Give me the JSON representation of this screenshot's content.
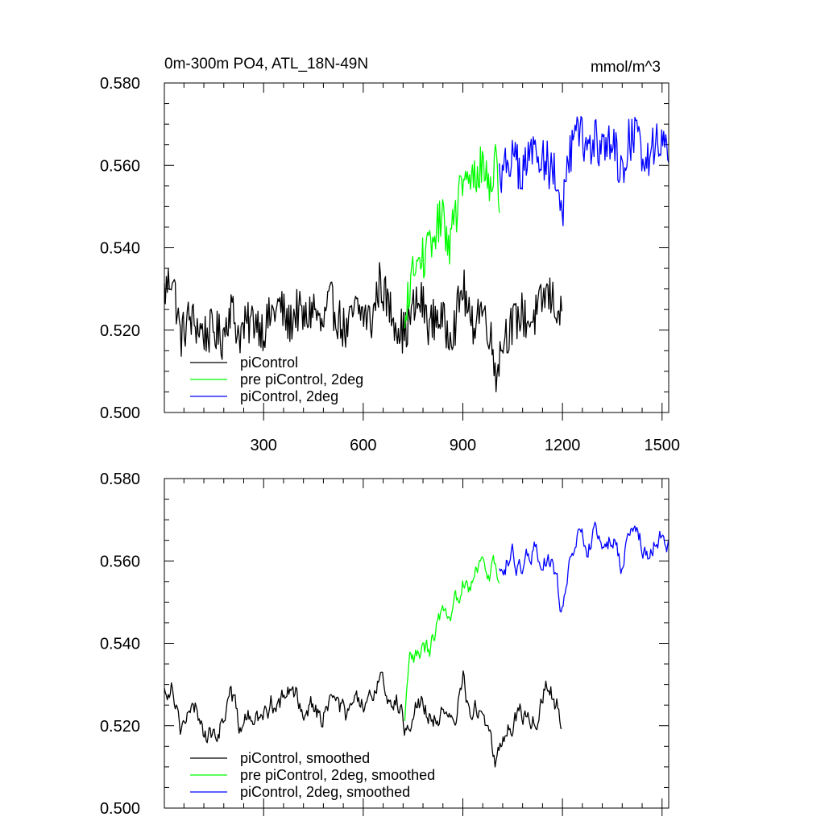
{
  "chart_data": [
    {
      "type": "line",
      "title_left": "0m-300m PO4, ATL_18N-49N",
      "title_right": "mmol/m^3",
      "xlim": [
        1,
        1520
      ],
      "ylim": [
        0.5,
        0.58
      ],
      "xticks": [
        300,
        600,
        900,
        1200,
        1500
      ],
      "xtick_labels": [
        "300",
        "600",
        "900",
        "1200",
        "1500"
      ],
      "yticks": [
        0.5,
        0.52,
        0.54,
        0.56,
        0.58
      ],
      "ytick_labels": [
        "0.500",
        "0.520",
        "0.540",
        "0.560",
        "0.580"
      ],
      "grid": false,
      "legend_position": "bottom-left",
      "series": [
        {
          "name": "piControl",
          "color": "#000000",
          "x": [
            1,
            25,
            50,
            75,
            100,
            125,
            150,
            175,
            200,
            225,
            250,
            275,
            300,
            325,
            350,
            375,
            400,
            425,
            450,
            475,
            500,
            525,
            550,
            575,
            600,
            625,
            650,
            675,
            700,
            725,
            750,
            775,
            800,
            825,
            850,
            875,
            900,
            925,
            950,
            975,
            1000,
            1025,
            1050,
            1075,
            1100,
            1125,
            1150,
            1175,
            1200
          ],
          "y": [
            0.529,
            0.534,
            0.518,
            0.523,
            0.521,
            0.519,
            0.52,
            0.518,
            0.526,
            0.519,
            0.521,
            0.523,
            0.52,
            0.524,
            0.526,
            0.521,
            0.525,
            0.522,
            0.526,
            0.52,
            0.527,
            0.523,
            0.519,
            0.525,
            0.524,
            0.522,
            0.532,
            0.526,
            0.522,
            0.519,
            0.525,
            0.527,
            0.521,
            0.524,
            0.52,
            0.521,
            0.531,
            0.52,
            0.526,
            0.522,
            0.51,
            0.519,
            0.521,
            0.524,
            0.522,
            0.524,
            0.529,
            0.527,
            0.522
          ]
        },
        {
          "name": "pre piControl, 2deg",
          "color": "#00ff00",
          "x": [
            725,
            740,
            760,
            780,
            800,
            820,
            840,
            860,
            880,
            900,
            920,
            940,
            960,
            980,
            1000,
            1010
          ],
          "y": [
            0.518,
            0.532,
            0.535,
            0.538,
            0.539,
            0.545,
            0.547,
            0.541,
            0.549,
            0.556,
            0.555,
            0.558,
            0.56,
            0.556,
            0.56,
            0.553
          ]
        },
        {
          "name": "piControl, 2deg",
          "color": "#0000ff",
          "x": [
            1010,
            1030,
            1050,
            1075,
            1100,
            1125,
            1150,
            1175,
            1200,
            1225,
            1250,
            1275,
            1300,
            1325,
            1350,
            1375,
            1400,
            1425,
            1450,
            1475,
            1500,
            1520
          ],
          "y": [
            0.558,
            0.56,
            0.563,
            0.557,
            0.562,
            0.564,
            0.561,
            0.558,
            0.549,
            0.563,
            0.568,
            0.564,
            0.566,
            0.563,
            0.567,
            0.558,
            0.566,
            0.567,
            0.561,
            0.565,
            0.567,
            0.563
          ]
        }
      ]
    },
    {
      "type": "line",
      "xlim": [
        1,
        1520
      ],
      "ylim": [
        0.5,
        0.58
      ],
      "xticks": [
        300,
        600,
        900,
        1200,
        1500
      ],
      "yticks": [
        0.5,
        0.52,
        0.54,
        0.56,
        0.58
      ],
      "ytick_labels": [
        "0.500",
        "0.520",
        "0.540",
        "0.560",
        "0.580"
      ],
      "grid": false,
      "legend_position": "bottom-left",
      "series": [
        {
          "name": "piControl, smoothed",
          "color": "#000000",
          "x": [
            1,
            25,
            50,
            75,
            100,
            125,
            150,
            175,
            200,
            225,
            250,
            275,
            300,
            325,
            350,
            375,
            400,
            425,
            450,
            475,
            500,
            525,
            550,
            575,
            600,
            625,
            650,
            675,
            700,
            725,
            750,
            775,
            800,
            825,
            850,
            875,
            900,
            925,
            950,
            975,
            1000,
            1025,
            1050,
            1075,
            1100,
            1125,
            1150,
            1175,
            1200
          ],
          "y": [
            0.528,
            0.531,
            0.52,
            0.522,
            0.524,
            0.518,
            0.517,
            0.521,
            0.529,
            0.52,
            0.522,
            0.521,
            0.522,
            0.526,
            0.525,
            0.528,
            0.527,
            0.524,
            0.526,
            0.521,
            0.527,
            0.525,
            0.522,
            0.526,
            0.524,
            0.525,
            0.534,
            0.527,
            0.526,
            0.52,
            0.524,
            0.526,
            0.522,
            0.523,
            0.521,
            0.519,
            0.533,
            0.522,
            0.524,
            0.52,
            0.511,
            0.518,
            0.52,
            0.524,
            0.521,
            0.522,
            0.53,
            0.527,
            0.521
          ]
        },
        {
          "name": "pre piControl, 2deg, smoothed",
          "color": "#00ff00",
          "x": [
            725,
            740,
            760,
            780,
            800,
            820,
            840,
            860,
            880,
            900,
            920,
            940,
            960,
            980,
            1000,
            1010
          ],
          "y": [
            0.52,
            0.535,
            0.536,
            0.538,
            0.538,
            0.544,
            0.547,
            0.542,
            0.55,
            0.556,
            0.555,
            0.559,
            0.56,
            0.557,
            0.56,
            0.554
          ]
        },
        {
          "name": "piControl, 2deg, smoothed",
          "color": "#0000ff",
          "x": [
            1010,
            1030,
            1050,
            1075,
            1100,
            1125,
            1150,
            1175,
            1200,
            1225,
            1250,
            1275,
            1300,
            1325,
            1350,
            1375,
            1400,
            1425,
            1450,
            1475,
            1500,
            1520
          ],
          "y": [
            0.557,
            0.56,
            0.561,
            0.557,
            0.561,
            0.563,
            0.56,
            0.558,
            0.547,
            0.561,
            0.568,
            0.563,
            0.566,
            0.564,
            0.566,
            0.559,
            0.565,
            0.568,
            0.561,
            0.564,
            0.567,
            0.563
          ]
        }
      ]
    }
  ]
}
